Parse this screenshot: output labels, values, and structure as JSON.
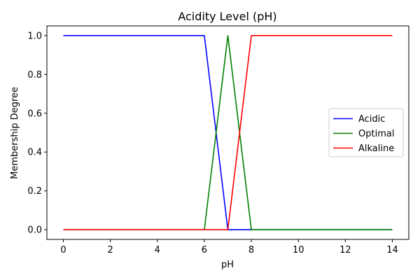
{
  "chart_data": {
    "type": "line",
    "title": "Acidity Level (pH)",
    "xlabel": "pH",
    "ylabel": "Membership Degree",
    "xlim": [
      -0.7,
      14.7
    ],
    "ylim": [
      -0.05,
      1.05
    ],
    "xticks": [
      0,
      2,
      4,
      6,
      8,
      10,
      12,
      14
    ],
    "yticks": [
      0.0,
      0.2,
      0.4,
      0.6,
      0.8,
      1.0
    ],
    "xtick_labels": [
      "0",
      "2",
      "4",
      "6",
      "8",
      "10",
      "12",
      "14"
    ],
    "ytick_labels": [
      "0.0",
      "0.2",
      "0.4",
      "0.6",
      "0.8",
      "1.0"
    ],
    "grid": false,
    "legend_position": "center-right",
    "series": [
      {
        "name": "Acidic",
        "color": "#0000ff",
        "x": [
          0,
          6,
          7,
          8,
          14
        ],
        "y": [
          1,
          1,
          0,
          0,
          0
        ]
      },
      {
        "name": "Optimal",
        "color": "#008000",
        "x": [
          0,
          6,
          7,
          8,
          14
        ],
        "y": [
          0,
          0,
          1,
          0,
          0
        ]
      },
      {
        "name": "Alkaline",
        "color": "#ff0000",
        "x": [
          0,
          6,
          7,
          8,
          14
        ],
        "y": [
          0,
          0,
          0,
          1,
          1
        ]
      }
    ]
  }
}
